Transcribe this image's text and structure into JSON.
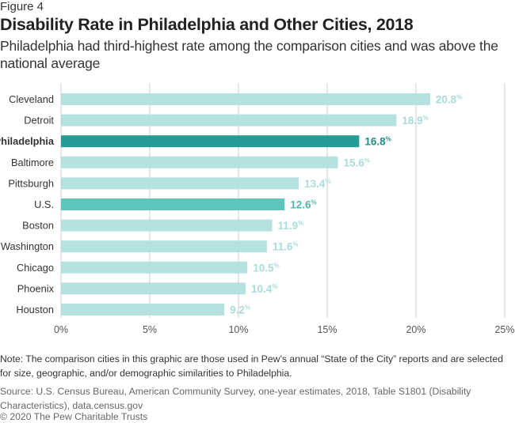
{
  "figure_label": "Figure 4",
  "title": "Disability Rate in Philadelphia and Other Cities, 2018",
  "subtitle": "Philadelphia had third-highest rate among the comparison cities and was above the national average",
  "note": "Note: The comparison cities in this graphic are those used in Pew’s annual “State of the City” reports and are selected for size, geographic, and/or demographic similarities to Philadelphia.",
  "source": "Source: U.S. Census Bureau, American Community Survey, one-year estimates, 2018, Table S1801 (Disability Characteristics), data.census.gov",
  "copyright": "© 2020 The Pew Charitable Trusts",
  "colors": {
    "default_bar": "#afdfdc",
    "default_label": "#a8dcd8",
    "highlight_bar": "#259c95",
    "highlight_label": "#1f8f89",
    "national_bar": "#5ec5bc",
    "national_label": "#4bb9b0",
    "grid": "#d6d6d6",
    "axis_text": "#555555",
    "category_text": "#333333"
  },
  "chart_data": {
    "type": "bar",
    "orientation": "horizontal",
    "title": "Disability Rate in Philadelphia and Other Cities, 2018",
    "xlabel": "",
    "ylabel": "",
    "xlim": [
      0,
      25
    ],
    "x_ticks": [
      0,
      5,
      10,
      15,
      20,
      25
    ],
    "x_tick_labels": [
      "0%",
      "5%",
      "10%",
      "15%",
      "20%",
      "25%"
    ],
    "grid": true,
    "value_suffix": "%",
    "categories": [
      "Cleveland",
      "Detroit",
      "Philadelphia",
      "Baltimore",
      "Pittsburgh",
      "U.S.",
      "Boston",
      "Washington",
      "Chicago",
      "Phoenix",
      "Houston"
    ],
    "values": [
      20.8,
      18.9,
      16.8,
      15.6,
      13.4,
      12.6,
      11.9,
      11.6,
      10.5,
      10.4,
      9.2
    ],
    "value_labels": [
      "20.8",
      "18.9",
      "16.8",
      "15.6",
      "13.4",
      "12.6",
      "11.9",
      "11.6",
      "10.5",
      "10.4",
      "9.2"
    ],
    "highlight": "Philadelphia",
    "national": "U.S."
  }
}
